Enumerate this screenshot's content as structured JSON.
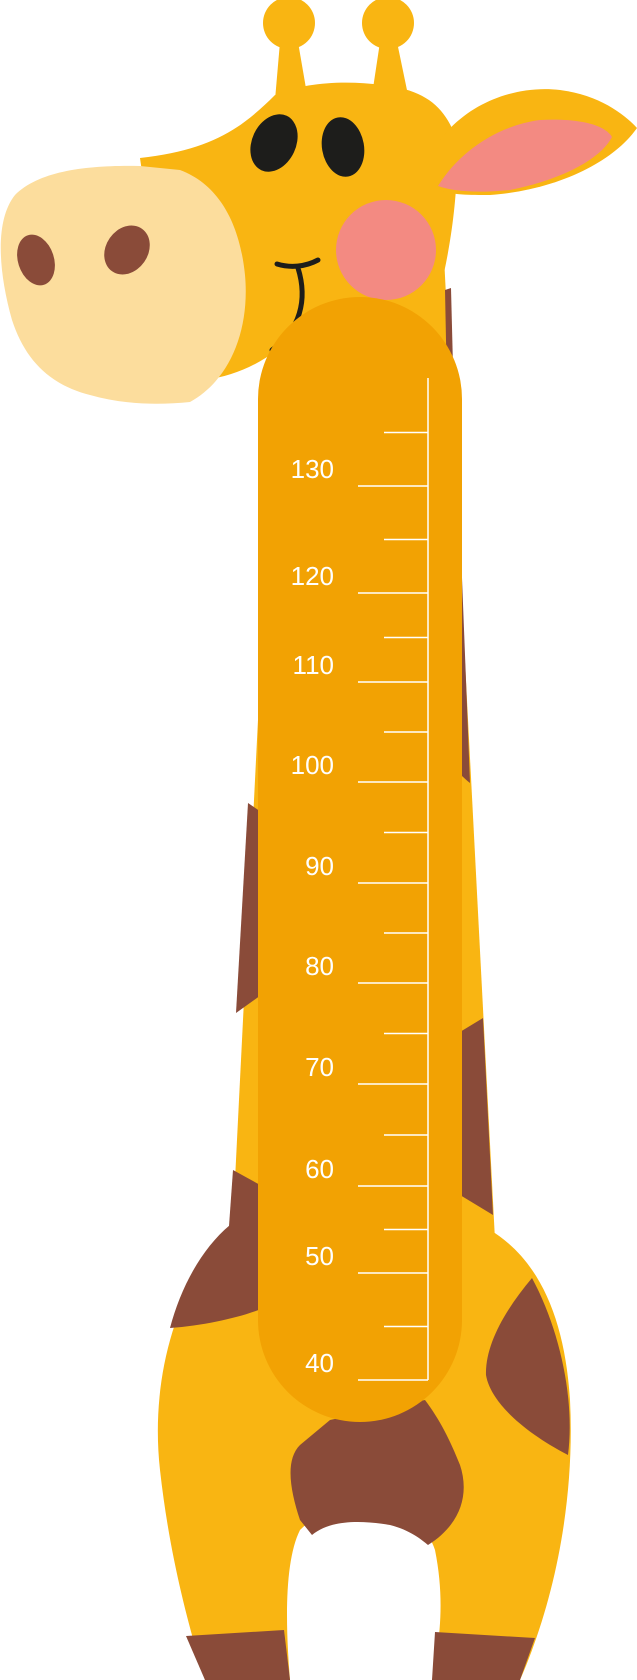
{
  "colors": {
    "body": "#F9B512",
    "belly": "#F2A203",
    "spot": "#8A4B39",
    "snout": "#FCDD9D",
    "ear_inner": "#F38A82",
    "cheek": "#F38A82",
    "eye": "#1D1D1B",
    "scale": "#FFFFFF"
  },
  "ruler": {
    "labels": [
      "130",
      "120",
      "110",
      "100",
      "90",
      "80",
      "70",
      "60",
      "50",
      "40"
    ],
    "label_values": [
      130,
      120,
      110,
      100,
      90,
      80,
      70,
      60,
      50,
      40
    ],
    "minor_step": 5,
    "range": [
      40,
      135
    ]
  }
}
